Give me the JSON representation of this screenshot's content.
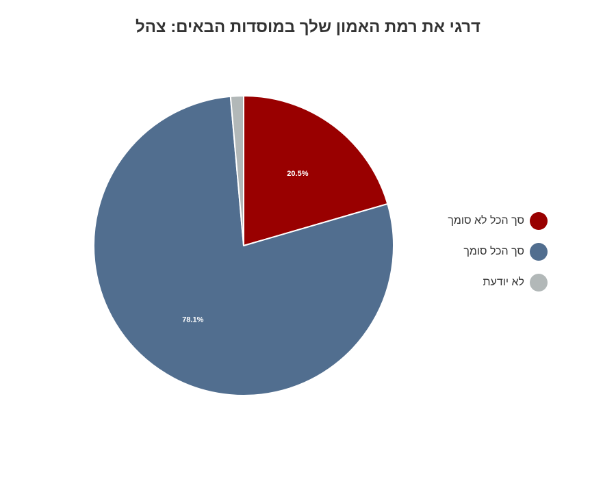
{
  "chart_data": {
    "type": "pie",
    "title": "דרגי את רמת האמון שלך במוסדות הבאים: צהל",
    "legend_position": "right",
    "slices": [
      {
        "name": "סך הכל לא סומך",
        "value": 20.5,
        "label": "20.5%",
        "color": "#990000"
      },
      {
        "name": "סך הכל סומך",
        "value": 78.1,
        "label": "78.1%",
        "color": "#516e8f"
      },
      {
        "name": "לא יודעת",
        "value": 1.4,
        "label": "",
        "color": "#b2b8b8"
      }
    ]
  }
}
